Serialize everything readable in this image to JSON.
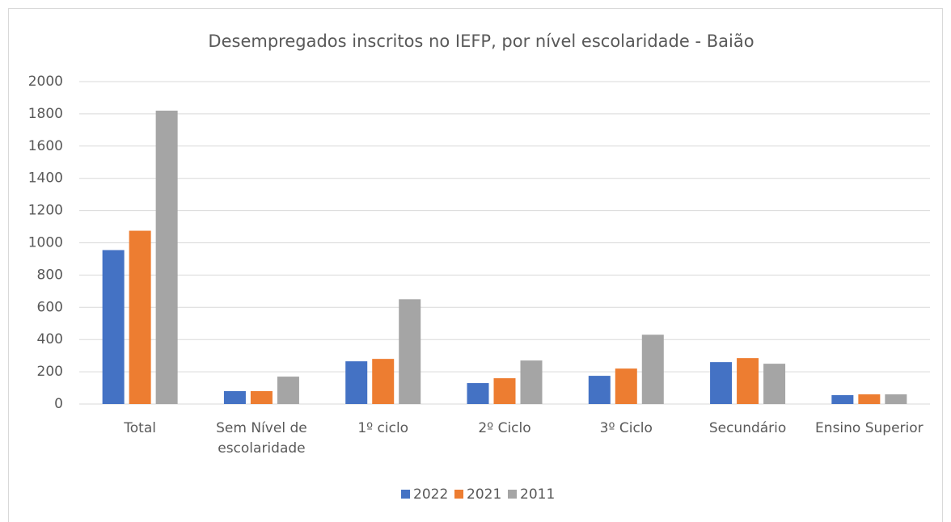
{
  "chart_data": {
    "type": "bar",
    "title": "Desempregados inscritos no IEFP, por nível escolaridade - Baião",
    "categories": [
      "Total",
      "Sem Nível de escolaridade",
      "1º ciclo",
      "2º Ciclo",
      "3º Ciclo",
      "Secundário",
      "Ensino Superior"
    ],
    "series": [
      {
        "name": "2022",
        "color": "#4472c4",
        "values": [
          955,
          80,
          265,
          130,
          175,
          260,
          55
        ]
      },
      {
        "name": "2021",
        "color": "#ed7d31",
        "values": [
          1075,
          80,
          280,
          160,
          220,
          285,
          60
        ]
      },
      {
        "name": "2011",
        "color": "#a5a5a5",
        "values": [
          1820,
          170,
          650,
          270,
          430,
          250,
          60
        ]
      }
    ],
    "ylim": [
      0,
      2000
    ],
    "yticks": [
      0,
      200,
      400,
      600,
      800,
      1000,
      1200,
      1400,
      1600,
      1800,
      2000
    ],
    "grid": true,
    "legend": "bottom"
  }
}
